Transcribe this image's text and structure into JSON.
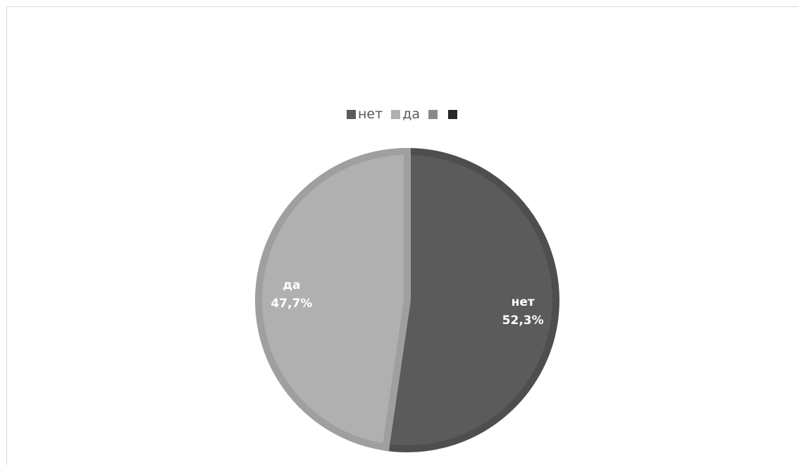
{
  "chart_data": {
    "type": "pie",
    "title": "",
    "categories": [
      "нет",
      "да",
      "",
      ""
    ],
    "values": [
      52.3,
      47.7,
      0,
      0
    ],
    "value_labels": [
      "52,3%",
      "47,7%",
      "",
      ""
    ],
    "colors": [
      "#5b5b5b",
      "#b0b0b0",
      "#8a8a8a",
      "#262626"
    ],
    "edge_colors": [
      "#4e4e4e",
      "#9f9f9f",
      "#808080",
      "#1f1f1f"
    ],
    "legend_position": "top",
    "start_angle_deg": 0,
    "direction": "clockwise"
  }
}
